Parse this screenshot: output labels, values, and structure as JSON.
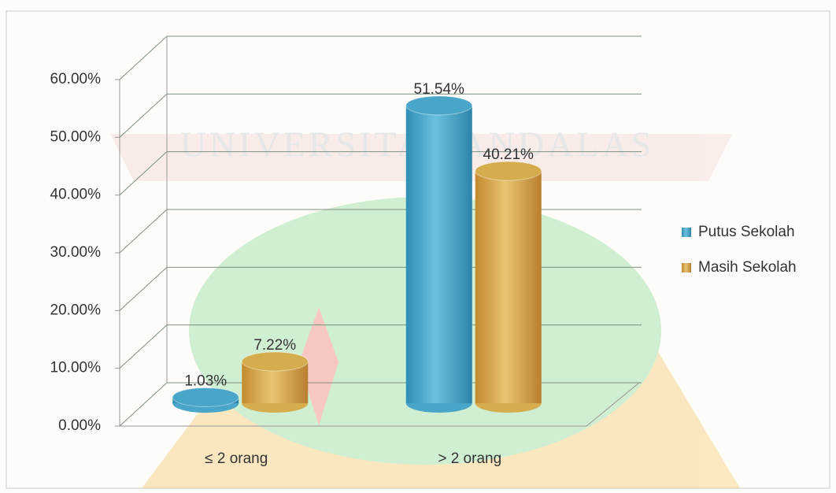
{
  "chart_data": {
    "type": "bar3d",
    "watermark": "UNIVERSITAS ANDALAS",
    "categories": [
      "≤ 2 orang",
      "> 2 orang"
    ],
    "series": [
      {
        "name": "Putus Sekolah",
        "color": "#4aa6c9",
        "values": [
          1.03,
          51.54
        ],
        "value_labels": [
          "1.03%",
          "51.54%"
        ]
      },
      {
        "name": "Masih Sekolah",
        "color": "#d6ad4e",
        "values": [
          7.22,
          40.21
        ],
        "value_labels": [
          "7.22%",
          "40.21%"
        ]
      }
    ],
    "ylim": [
      0,
      60
    ],
    "yticks": [
      {
        "value": 0,
        "label": "0.00%"
      },
      {
        "value": 10,
        "label": "10.00%"
      },
      {
        "value": 20,
        "label": "20.00%"
      },
      {
        "value": 30,
        "label": "30.00%"
      },
      {
        "value": 40,
        "label": "40.00%"
      },
      {
        "value": 50,
        "label": "50.00%"
      },
      {
        "value": 60,
        "label": "60.00%"
      }
    ],
    "grid": true,
    "legend": "right"
  }
}
